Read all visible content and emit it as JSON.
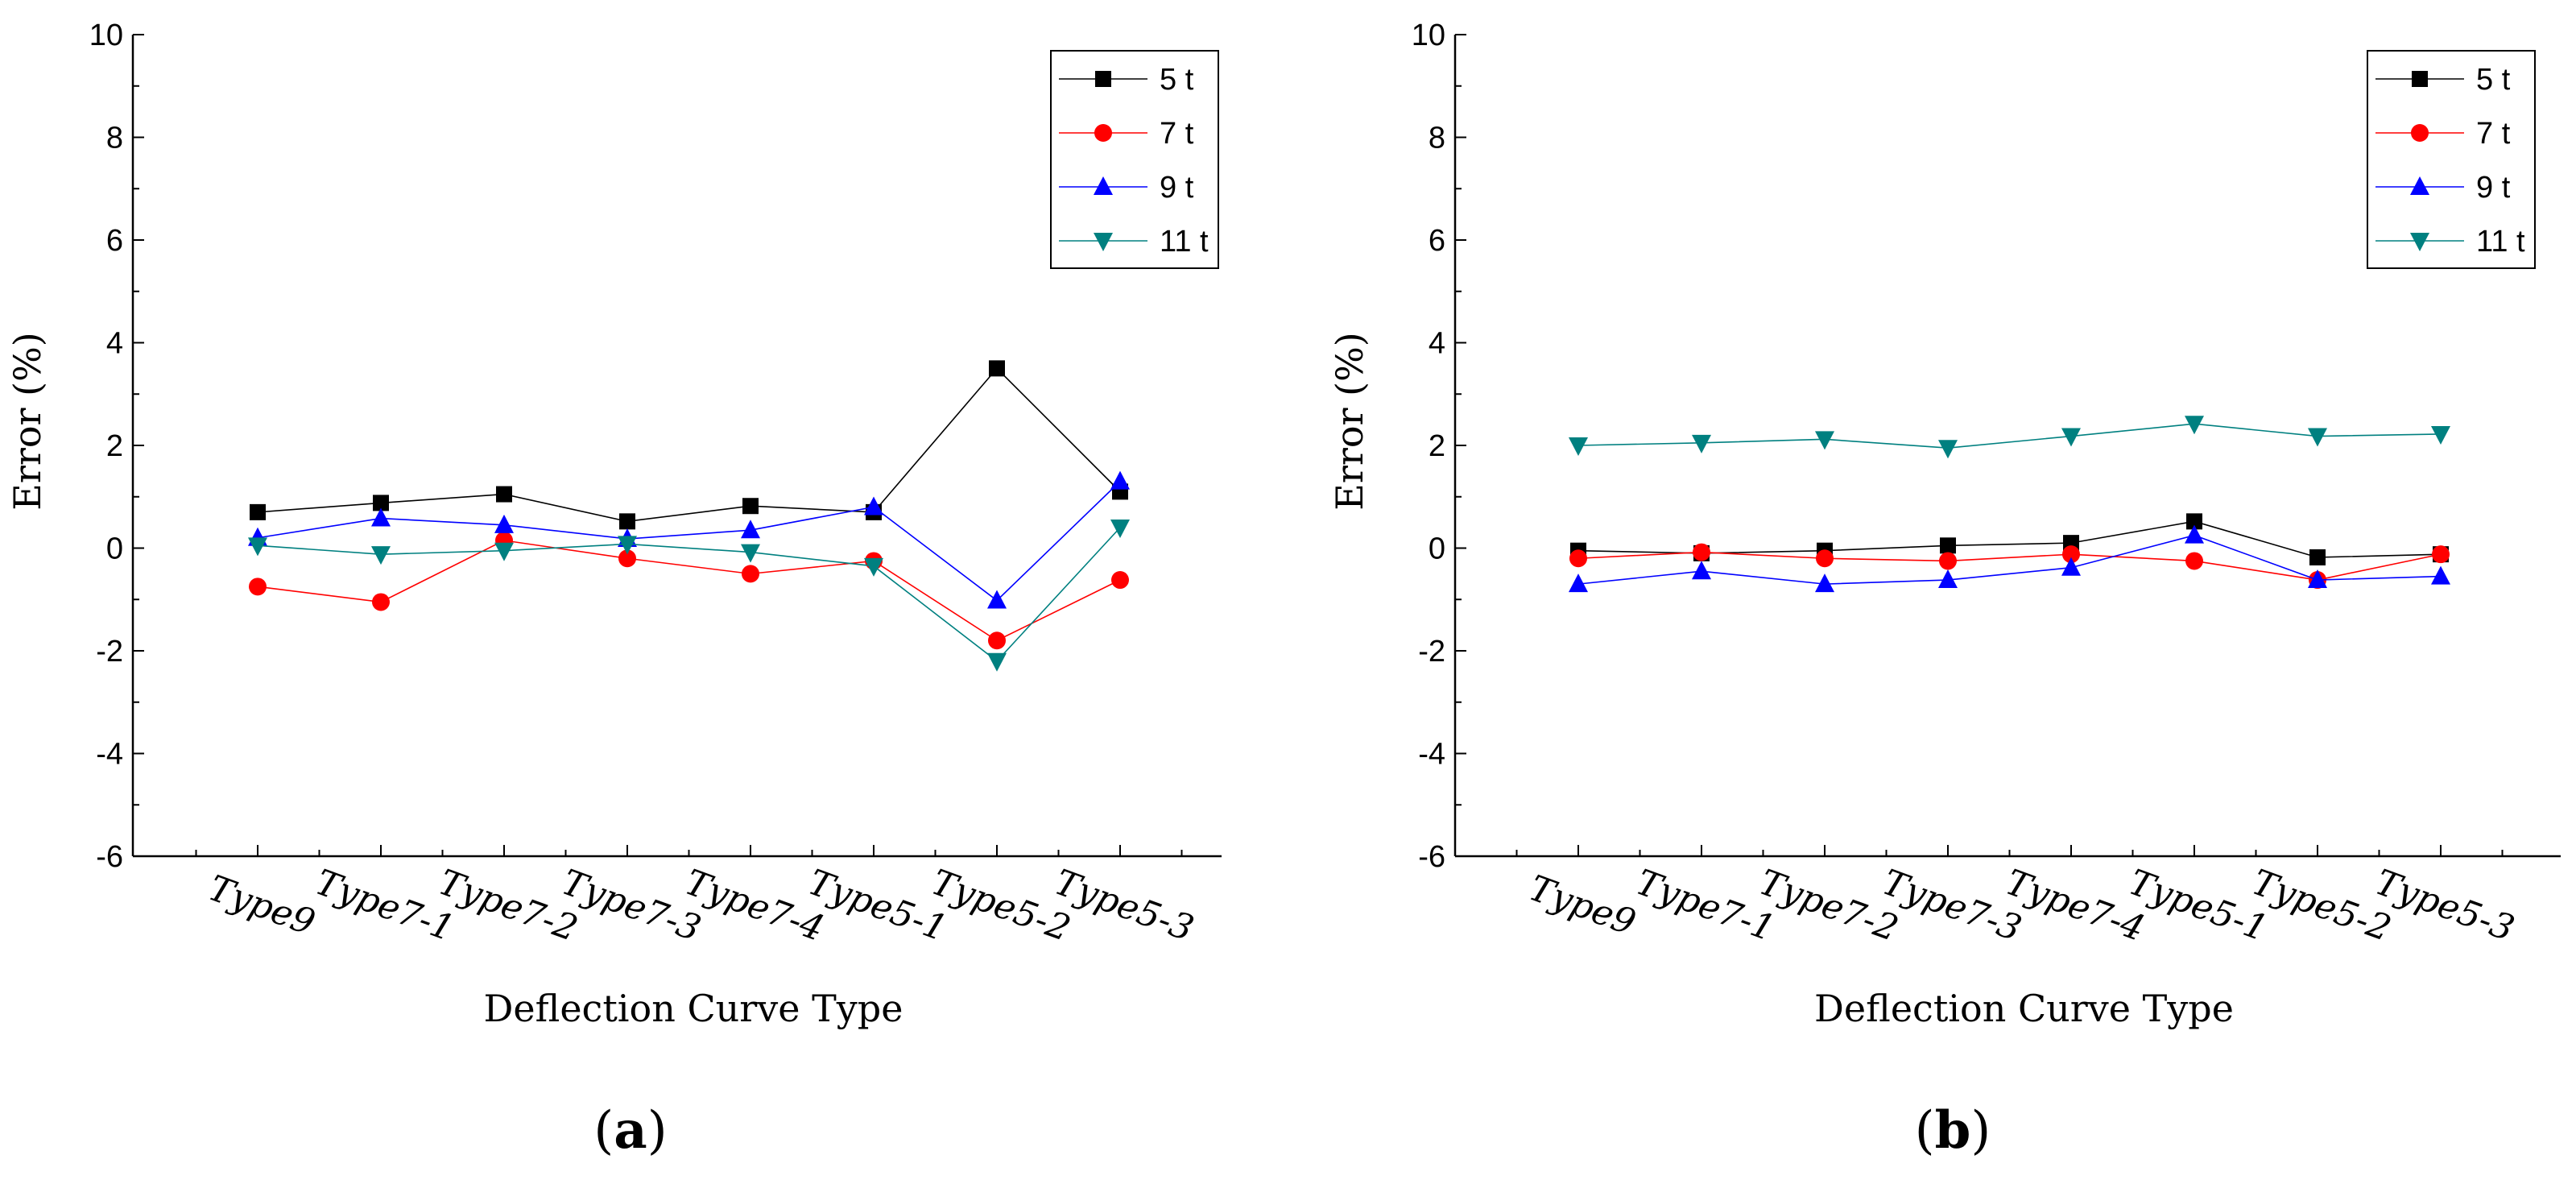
{
  "chart_data": [
    {
      "type": "line",
      "panel_label": "a",
      "xlabel": "Deflection Curve Type",
      "ylabel": "Error (%)",
      "ylim": [
        -6,
        10
      ],
      "yticks": [
        -6,
        -4,
        -2,
        0,
        2,
        4,
        6,
        8,
        10
      ],
      "categories": [
        "Type9",
        "Type7-1",
        "Type7-2",
        "Type7-3",
        "Type7-4",
        "Type5-1",
        "Type5-2",
        "Type5-3"
      ],
      "legend_position": "top-right",
      "grid": false,
      "series": [
        {
          "name": "5 t",
          "color": "#000000",
          "marker": "square",
          "values": [
            0.7,
            0.88,
            1.05,
            0.52,
            0.82,
            0.7,
            3.5,
            1.1
          ]
        },
        {
          "name": "7 t",
          "color": "#ff0000",
          "marker": "circle",
          "values": [
            -0.75,
            -1.05,
            0.15,
            -0.2,
            -0.5,
            -0.25,
            -1.8,
            -0.62
          ]
        },
        {
          "name": "9 t",
          "color": "#0000ff",
          "marker": "triangle-up",
          "values": [
            0.2,
            0.58,
            0.45,
            0.18,
            0.35,
            0.8,
            -1.02,
            1.3
          ]
        },
        {
          "name": "11 t",
          "color": "#008080",
          "marker": "triangle-down",
          "values": [
            0.05,
            -0.12,
            -0.05,
            0.08,
            -0.08,
            -0.35,
            -2.2,
            0.4
          ]
        }
      ]
    },
    {
      "type": "line",
      "panel_label": "b",
      "xlabel": "Deflection Curve Type",
      "ylabel": "Error (%)",
      "ylim": [
        -6,
        10
      ],
      "yticks": [
        -6,
        -4,
        -2,
        0,
        2,
        4,
        6,
        8,
        10
      ],
      "categories": [
        "Type9",
        "Type7-1",
        "Type7-2",
        "Type7-3",
        "Type7-4",
        "Type5-1",
        "Type5-2",
        "Type5-3"
      ],
      "legend_position": "top-right",
      "grid": false,
      "series": [
        {
          "name": "5 t",
          "color": "#000000",
          "marker": "square",
          "values": [
            -0.05,
            -0.1,
            -0.05,
            0.05,
            0.1,
            0.52,
            -0.18,
            -0.12
          ]
        },
        {
          "name": "7 t",
          "color": "#ff0000",
          "marker": "circle",
          "values": [
            -0.2,
            -0.08,
            -0.2,
            -0.25,
            -0.12,
            -0.25,
            -0.62,
            -0.12
          ]
        },
        {
          "name": "9 t",
          "color": "#0000ff",
          "marker": "triangle-up",
          "values": [
            -0.7,
            -0.45,
            -0.7,
            -0.62,
            -0.38,
            0.25,
            -0.62,
            -0.55
          ]
        },
        {
          "name": "11 t",
          "color": "#008080",
          "marker": "triangle-down",
          "values": [
            2.0,
            2.05,
            2.12,
            1.95,
            2.18,
            2.42,
            2.18,
            2.22
          ]
        }
      ]
    }
  ]
}
